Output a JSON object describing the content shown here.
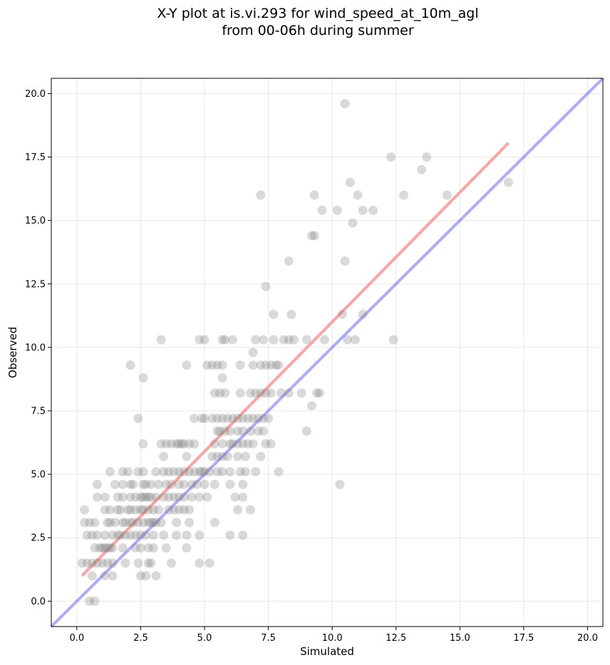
{
  "chart_data": {
    "type": "scatter",
    "title_lines": [
      "X-Y plot at is.vi.293 for wind_speed_at_10m_agl",
      "from 00-06h during summer"
    ],
    "xlabel": "Simulated",
    "ylabel": "Observed",
    "xlim": [
      -1.0,
      20.6
    ],
    "ylim": [
      -1.0,
      20.6
    ],
    "xticks": [
      0.0,
      2.5,
      5.0,
      7.5,
      10.0,
      12.5,
      15.0,
      17.5,
      20.0
    ],
    "yticks": [
      0.0,
      2.5,
      5.0,
      7.5,
      10.0,
      12.5,
      15.0,
      17.5,
      20.0
    ],
    "xtick_labels": [
      "0.0",
      "2.5",
      "5.0",
      "7.5",
      "10.0",
      "12.5",
      "15.0",
      "17.5",
      "20.0"
    ],
    "ytick_labels": [
      "0.0",
      "2.5",
      "5.0",
      "7.5",
      "10.0",
      "12.5",
      "15.0",
      "17.5",
      "20.0"
    ],
    "grid": true,
    "point_color": "#808080",
    "point_opacity": 0.3,
    "points": [
      [
        0.5,
        0.0
      ],
      [
        0.7,
        0.0
      ],
      [
        0.6,
        1.0
      ],
      [
        1.1,
        1.0
      ],
      [
        1.4,
        1.0
      ],
      [
        2.5,
        1.0
      ],
      [
        2.7,
        1.0
      ],
      [
        3.1,
        1.0
      ],
      [
        0.2,
        1.5
      ],
      [
        0.4,
        1.5
      ],
      [
        0.6,
        1.5
      ],
      [
        0.8,
        1.5
      ],
      [
        1.0,
        1.5
      ],
      [
        1.2,
        1.5
      ],
      [
        1.4,
        1.5
      ],
      [
        1.9,
        1.5
      ],
      [
        2.4,
        1.5
      ],
      [
        2.8,
        1.5
      ],
      [
        2.9,
        1.5
      ],
      [
        3.7,
        1.5
      ],
      [
        4.8,
        1.5
      ],
      [
        5.2,
        1.5
      ],
      [
        0.7,
        2.1
      ],
      [
        0.9,
        2.1
      ],
      [
        1.0,
        2.1
      ],
      [
        1.1,
        2.1
      ],
      [
        1.2,
        2.1
      ],
      [
        1.3,
        2.1
      ],
      [
        1.4,
        2.1
      ],
      [
        1.8,
        2.1
      ],
      [
        2.3,
        2.1
      ],
      [
        2.5,
        2.1
      ],
      [
        2.8,
        2.1
      ],
      [
        3.0,
        2.1
      ],
      [
        3.5,
        2.1
      ],
      [
        4.3,
        2.1
      ],
      [
        0.4,
        2.6
      ],
      [
        0.6,
        2.6
      ],
      [
        0.8,
        2.6
      ],
      [
        1.1,
        2.6
      ],
      [
        1.4,
        2.6
      ],
      [
        1.6,
        2.6
      ],
      [
        1.7,
        2.6
      ],
      [
        1.9,
        2.6
      ],
      [
        2.1,
        2.6
      ],
      [
        2.3,
        2.6
      ],
      [
        2.5,
        2.6
      ],
      [
        2.7,
        2.6
      ],
      [
        3.0,
        2.6
      ],
      [
        3.4,
        2.6
      ],
      [
        3.9,
        2.6
      ],
      [
        4.3,
        2.6
      ],
      [
        4.8,
        2.6
      ],
      [
        6.0,
        2.6
      ],
      [
        6.5,
        2.6
      ],
      [
        0.3,
        3.1
      ],
      [
        0.5,
        3.1
      ],
      [
        0.7,
        3.1
      ],
      [
        1.2,
        3.1
      ],
      [
        1.3,
        3.1
      ],
      [
        1.5,
        3.1
      ],
      [
        1.8,
        3.1
      ],
      [
        1.9,
        3.1
      ],
      [
        2.1,
        3.1
      ],
      [
        2.2,
        3.1
      ],
      [
        2.4,
        3.1
      ],
      [
        2.6,
        3.1
      ],
      [
        2.8,
        3.1
      ],
      [
        2.9,
        3.1
      ],
      [
        3.0,
        3.1
      ],
      [
        3.1,
        3.1
      ],
      [
        3.3,
        3.1
      ],
      [
        3.9,
        3.1
      ],
      [
        4.4,
        3.1
      ],
      [
        5.4,
        3.1
      ],
      [
        0.3,
        3.6
      ],
      [
        1.1,
        3.6
      ],
      [
        1.3,
        3.6
      ],
      [
        1.6,
        3.6
      ],
      [
        1.7,
        3.6
      ],
      [
        2.0,
        3.6
      ],
      [
        2.1,
        3.6
      ],
      [
        2.3,
        3.6
      ],
      [
        2.5,
        3.6
      ],
      [
        2.6,
        3.6
      ],
      [
        2.8,
        3.6
      ],
      [
        3.0,
        3.6
      ],
      [
        3.2,
        3.6
      ],
      [
        3.6,
        3.6
      ],
      [
        3.8,
        3.6
      ],
      [
        4.0,
        3.6
      ],
      [
        4.2,
        3.6
      ],
      [
        4.4,
        3.6
      ],
      [
        6.3,
        3.6
      ],
      [
        6.8,
        3.6
      ],
      [
        0.8,
        4.1
      ],
      [
        1.1,
        4.1
      ],
      [
        1.6,
        4.1
      ],
      [
        1.8,
        4.1
      ],
      [
        2.1,
        4.1
      ],
      [
        2.3,
        4.1
      ],
      [
        2.5,
        4.1
      ],
      [
        2.6,
        4.1
      ],
      [
        2.7,
        4.1
      ],
      [
        2.8,
        4.1
      ],
      [
        2.9,
        4.1
      ],
      [
        3.1,
        4.1
      ],
      [
        3.4,
        4.1
      ],
      [
        3.6,
        4.1
      ],
      [
        3.8,
        4.1
      ],
      [
        4.0,
        4.1
      ],
      [
        4.2,
        4.1
      ],
      [
        4.5,
        4.1
      ],
      [
        4.8,
        4.1
      ],
      [
        5.1,
        4.1
      ],
      [
        6.2,
        4.1
      ],
      [
        6.5,
        4.1
      ],
      [
        0.8,
        4.6
      ],
      [
        1.5,
        4.6
      ],
      [
        1.8,
        4.6
      ],
      [
        2.1,
        4.6
      ],
      [
        2.2,
        4.6
      ],
      [
        2.6,
        4.6
      ],
      [
        2.7,
        4.6
      ],
      [
        2.9,
        4.6
      ],
      [
        3.2,
        4.6
      ],
      [
        3.5,
        4.6
      ],
      [
        3.7,
        4.6
      ],
      [
        4.0,
        4.6
      ],
      [
        4.2,
        4.6
      ],
      [
        4.5,
        4.6
      ],
      [
        4.7,
        4.6
      ],
      [
        5.0,
        4.6
      ],
      [
        5.4,
        4.6
      ],
      [
        6.0,
        4.6
      ],
      [
        6.5,
        4.6
      ],
      [
        10.3,
        4.6
      ],
      [
        1.3,
        5.1
      ],
      [
        1.8,
        5.1
      ],
      [
        2.0,
        5.1
      ],
      [
        2.4,
        5.1
      ],
      [
        2.6,
        5.1
      ],
      [
        3.1,
        5.1
      ],
      [
        3.4,
        5.1
      ],
      [
        3.6,
        5.1
      ],
      [
        3.8,
        5.1
      ],
      [
        4.0,
        5.1
      ],
      [
        4.2,
        5.1
      ],
      [
        4.4,
        5.1
      ],
      [
        4.6,
        5.1
      ],
      [
        4.8,
        5.1
      ],
      [
        4.9,
        5.1
      ],
      [
        5.0,
        5.1
      ],
      [
        5.2,
        5.1
      ],
      [
        5.5,
        5.1
      ],
      [
        5.7,
        5.1
      ],
      [
        6.0,
        5.1
      ],
      [
        6.4,
        5.1
      ],
      [
        6.6,
        5.1
      ],
      [
        7.0,
        5.1
      ],
      [
        7.9,
        5.1
      ],
      [
        3.4,
        5.7
      ],
      [
        4.3,
        5.7
      ],
      [
        5.3,
        5.7
      ],
      [
        5.5,
        5.7
      ],
      [
        5.7,
        5.7
      ],
      [
        5.9,
        5.7
      ],
      [
        6.3,
        5.7
      ],
      [
        6.6,
        5.7
      ],
      [
        7.2,
        5.7
      ],
      [
        2.6,
        6.2
      ],
      [
        3.3,
        6.2
      ],
      [
        3.5,
        6.2
      ],
      [
        3.7,
        6.2
      ],
      [
        3.9,
        6.2
      ],
      [
        4.0,
        6.2
      ],
      [
        4.1,
        6.2
      ],
      [
        4.2,
        6.2
      ],
      [
        4.4,
        6.2
      ],
      [
        4.6,
        6.2
      ],
      [
        5.4,
        6.2
      ],
      [
        5.7,
        6.2
      ],
      [
        6.0,
        6.2
      ],
      [
        6.1,
        6.2
      ],
      [
        6.3,
        6.2
      ],
      [
        6.5,
        6.2
      ],
      [
        6.7,
        6.2
      ],
      [
        6.9,
        6.2
      ],
      [
        7.4,
        6.2
      ],
      [
        7.6,
        6.2
      ],
      [
        5.5,
        6.7
      ],
      [
        5.6,
        6.7
      ],
      [
        5.8,
        6.7
      ],
      [
        6.0,
        6.7
      ],
      [
        6.3,
        6.7
      ],
      [
        6.5,
        6.7
      ],
      [
        6.8,
        6.7
      ],
      [
        7.1,
        6.7
      ],
      [
        7.3,
        6.7
      ],
      [
        9.0,
        6.7
      ],
      [
        2.4,
        7.2
      ],
      [
        4.6,
        7.2
      ],
      [
        4.9,
        7.2
      ],
      [
        5.0,
        7.2
      ],
      [
        5.3,
        7.2
      ],
      [
        5.5,
        7.2
      ],
      [
        5.7,
        7.2
      ],
      [
        5.9,
        7.2
      ],
      [
        6.1,
        7.2
      ],
      [
        6.3,
        7.2
      ],
      [
        6.5,
        7.2
      ],
      [
        6.7,
        7.2
      ],
      [
        6.9,
        7.2
      ],
      [
        7.1,
        7.2
      ],
      [
        7.3,
        7.2
      ],
      [
        7.5,
        7.2
      ],
      [
        9.2,
        7.7
      ],
      [
        5.4,
        8.2
      ],
      [
        5.6,
        8.2
      ],
      [
        5.8,
        8.2
      ],
      [
        6.4,
        8.2
      ],
      [
        6.8,
        8.2
      ],
      [
        7.0,
        8.2
      ],
      [
        7.2,
        8.2
      ],
      [
        7.4,
        8.2
      ],
      [
        7.6,
        8.2
      ],
      [
        8.0,
        8.2
      ],
      [
        8.3,
        8.2
      ],
      [
        8.8,
        8.2
      ],
      [
        9.4,
        8.2
      ],
      [
        9.5,
        8.2
      ],
      [
        2.6,
        8.8
      ],
      [
        5.7,
        8.8
      ],
      [
        2.1,
        9.3
      ],
      [
        4.3,
        9.3
      ],
      [
        5.1,
        9.3
      ],
      [
        5.3,
        9.3
      ],
      [
        5.5,
        9.3
      ],
      [
        5.7,
        9.3
      ],
      [
        6.4,
        9.3
      ],
      [
        6.9,
        9.3
      ],
      [
        7.2,
        9.3
      ],
      [
        7.4,
        9.3
      ],
      [
        7.6,
        9.3
      ],
      [
        7.8,
        9.3
      ],
      [
        7.9,
        9.3
      ],
      [
        6.9,
        9.8
      ],
      [
        3.3,
        10.3
      ],
      [
        4.8,
        10.3
      ],
      [
        5.0,
        10.3
      ],
      [
        5.7,
        10.3
      ],
      [
        5.8,
        10.3
      ],
      [
        6.1,
        10.3
      ],
      [
        7.0,
        10.3
      ],
      [
        7.3,
        10.3
      ],
      [
        7.7,
        10.3
      ],
      [
        8.1,
        10.3
      ],
      [
        8.3,
        10.3
      ],
      [
        8.5,
        10.3
      ],
      [
        9.0,
        10.3
      ],
      [
        9.7,
        10.3
      ],
      [
        10.6,
        10.3
      ],
      [
        10.9,
        10.3
      ],
      [
        12.4,
        10.3
      ],
      [
        7.7,
        11.3
      ],
      [
        8.4,
        11.3
      ],
      [
        10.4,
        11.3
      ],
      [
        11.2,
        11.3
      ],
      [
        7.4,
        12.4
      ],
      [
        8.3,
        13.4
      ],
      [
        10.5,
        13.4
      ],
      [
        9.2,
        14.4
      ],
      [
        9.3,
        14.4
      ],
      [
        10.8,
        14.9
      ],
      [
        9.6,
        15.4
      ],
      [
        10.2,
        15.4
      ],
      [
        11.2,
        15.4
      ],
      [
        11.6,
        15.4
      ],
      [
        7.2,
        16.0
      ],
      [
        9.3,
        16.0
      ],
      [
        11.0,
        16.0
      ],
      [
        12.8,
        16.0
      ],
      [
        14.5,
        16.0
      ],
      [
        10.7,
        16.5
      ],
      [
        16.9,
        16.5
      ],
      [
        13.5,
        17.0
      ],
      [
        12.3,
        17.5
      ],
      [
        13.7,
        17.5
      ],
      [
        10.5,
        19.6
      ]
    ],
    "lines": [
      {
        "color": "#ff6666",
        "opacity": 0.6,
        "x": [
          0.2,
          16.9
        ],
        "y": [
          1.0,
          18.05
        ]
      },
      {
        "color": "#6666ff",
        "opacity": 0.55,
        "x": [
          -1.0,
          20.6
        ],
        "y": [
          -1.0,
          20.6
        ]
      }
    ]
  }
}
